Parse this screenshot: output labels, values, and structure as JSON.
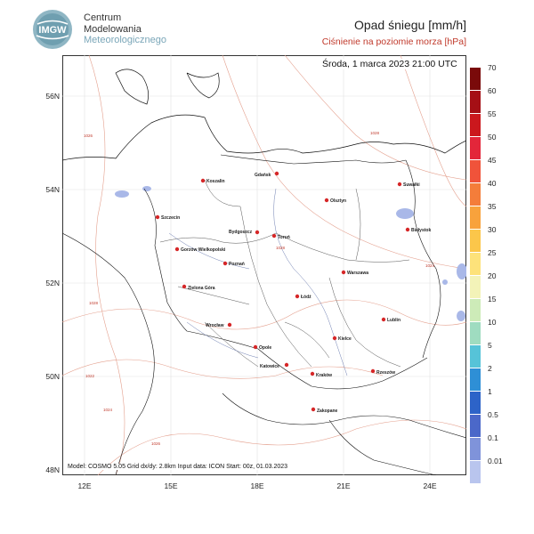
{
  "header": {
    "institution_line1": "Centrum",
    "institution_line2": "Modelowania",
    "institution_line3": "Meteorologicznego",
    "logo_text": "IMGW",
    "title": "Opad śniegu [mm/h]",
    "subtitle": "Ciśnienie na poziomie morza [hPa]"
  },
  "map": {
    "datetime": "Środa, 1 marca 2023 21:00 UTC",
    "info": "Model: COSMO 5.05  Grid dx/dy: 2.8km  Input data: ICON  Start: 00z, 01.03.2023",
    "lat_ticks": [
      "56N",
      "54N",
      "52N",
      "50N",
      "48N"
    ],
    "lon_ticks": [
      "12E",
      "15E",
      "18E",
      "21E",
      "24E"
    ],
    "cities": [
      {
        "name": "Gdańsk"
      },
      {
        "name": "Koszalin"
      },
      {
        "name": "Suwałki"
      },
      {
        "name": "Olsztyn"
      },
      {
        "name": "Szczecin"
      },
      {
        "name": "Bydgoszcz"
      },
      {
        "name": "Toruń"
      },
      {
        "name": "Białystok"
      },
      {
        "name": "Gorzów Wielkopolski"
      },
      {
        "name": "Poznań"
      },
      {
        "name": "Warszawa"
      },
      {
        "name": "Zielona Góra"
      },
      {
        "name": "Łódź"
      },
      {
        "name": "Lublin"
      },
      {
        "name": "Wrocław"
      },
      {
        "name": "Opole"
      },
      {
        "name": "Kielce"
      },
      {
        "name": "Katowice"
      },
      {
        "name": "Kraków"
      },
      {
        "name": "Rzeszów"
      },
      {
        "name": "Zakopane"
      }
    ],
    "isobar_labels": [
      "1026",
      "1028",
      "1028",
      "1028",
      "1024",
      "1022",
      "1024",
      "1026"
    ]
  },
  "colorbar": {
    "labels": [
      "70",
      "60",
      "55",
      "50",
      "45",
      "40",
      "35",
      "30",
      "25",
      "20",
      "15",
      "10",
      "5",
      "2",
      "1",
      "0.5",
      "0.1",
      "0.01"
    ],
    "colors": [
      "#7a0a0a",
      "#a50f15",
      "#cb181d",
      "#e3263a",
      "#f0533a",
      "#f47d3a",
      "#f8a23c",
      "#fbc64a",
      "#fde27a",
      "#f3f3b8",
      "#cdebb8",
      "#9fdcc0",
      "#56c3d8",
      "#2e8fd6",
      "#2d63c8",
      "#4b68c9",
      "#7f93da",
      "#b9c5ee"
    ]
  }
}
